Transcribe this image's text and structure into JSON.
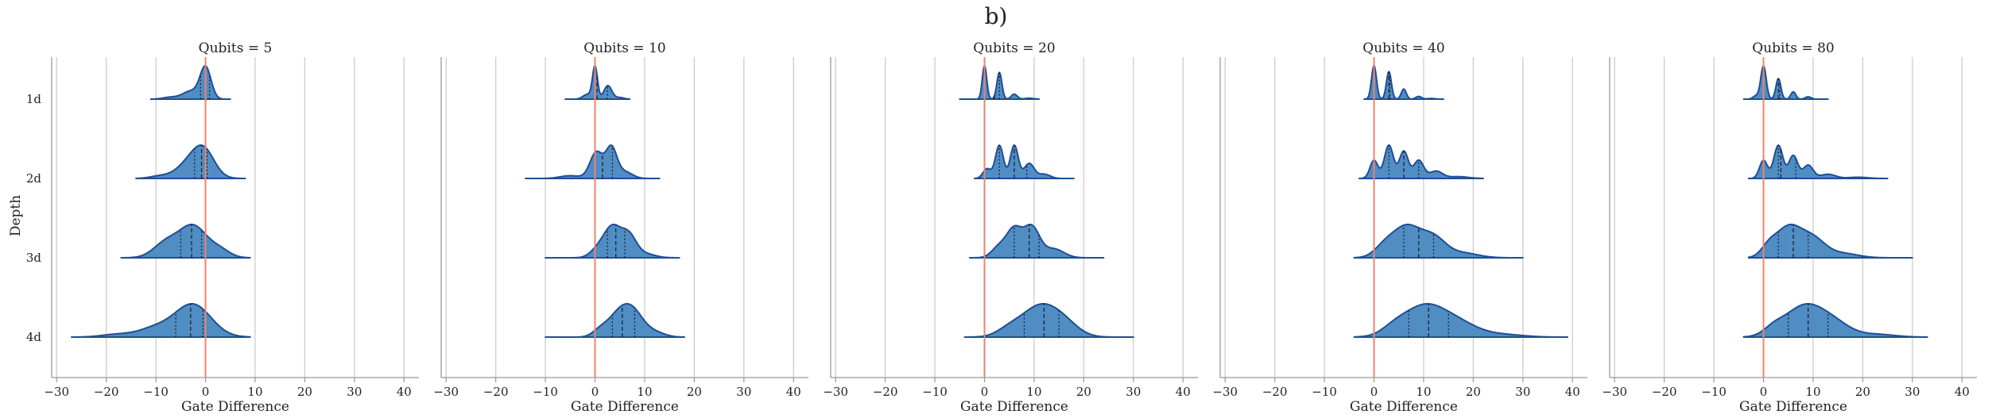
{
  "chart_data": {
    "type": "violin",
    "suptitle": "b)",
    "ylabel": "Depth",
    "xlabel": "Gate Difference",
    "categories": [
      "1d",
      "2d",
      "3d",
      "4d"
    ],
    "xlim": [
      -31,
      43
    ],
    "xticks": [
      -30,
      -20,
      -10,
      0,
      10,
      20,
      30,
      40
    ],
    "reference_line_x": 0,
    "colors": {
      "fill": "#4f8dc2",
      "edge": "#1f4e96",
      "ref": "#f0836b",
      "grid": "#cccccc",
      "spine": "#999999"
    },
    "panels": [
      {
        "title": "Qubits = 5",
        "violins": [
          {
            "depth": "1d",
            "min": -11,
            "max": 5,
            "quartiles": [
              -1,
              0,
              0.8
            ],
            "peaks": [
              {
                "x": 0,
                "h": 1.0,
                "s": 1.1
              },
              {
                "x": -3,
                "h": 0.25,
                "s": 1.6
              },
              {
                "x": -7,
                "h": 0.06,
                "s": 1.5
              }
            ]
          },
          {
            "depth": "2d",
            "min": -14,
            "max": 8,
            "quartiles": [
              -2.2,
              -0.8,
              0.3
            ],
            "peaks": [
              {
                "x": -0.5,
                "h": 0.8,
                "s": 2.2
              },
              {
                "x": -4,
                "h": 0.3,
                "s": 2.2
              },
              {
                "x": -9,
                "h": 0.07,
                "s": 2.0
              }
            ]
          },
          {
            "depth": "3d",
            "min": -17,
            "max": 9,
            "quartiles": [
              -5,
              -2.8,
              -0.8
            ],
            "peaks": [
              {
                "x": -2.5,
                "h": 0.55,
                "s": 2.8
              },
              {
                "x": -8,
                "h": 0.25,
                "s": 2.5
              },
              {
                "x": 3,
                "h": 0.12,
                "s": 2.0
              }
            ]
          },
          {
            "depth": "4d",
            "min": -27,
            "max": 9,
            "quartiles": [
              -6,
              -3,
              -0.5
            ],
            "peaks": [
              {
                "x": -2.5,
                "h": 0.5,
                "s": 3.6
              },
              {
                "x": -10,
                "h": 0.14,
                "s": 3.5
              },
              {
                "x": -18,
                "h": 0.04,
                "s": 3.0
              }
            ]
          }
        ]
      },
      {
        "title": "Qubits = 10",
        "violins": [
          {
            "depth": "1d",
            "min": -6,
            "max": 7,
            "quartiles": [
              0,
              0.4,
              2.5
            ],
            "peaks": [
              {
                "x": 0,
                "h": 1.0,
                "s": 0.5
              },
              {
                "x": 2.6,
                "h": 0.42,
                "s": 0.8
              },
              {
                "x": -1.5,
                "h": 0.15,
                "s": 0.9
              },
              {
                "x": 5,
                "h": 0.05,
                "s": 0.8
              }
            ]
          },
          {
            "depth": "2d",
            "min": -14,
            "max": 13,
            "quartiles": [
              0,
              1.5,
              3.5
            ],
            "peaks": [
              {
                "x": 0.3,
                "h": 0.48,
                "s": 1.3
              },
              {
                "x": 3.3,
                "h": 0.55,
                "s": 1.1
              },
              {
                "x": 6,
                "h": 0.12,
                "s": 1.5
              },
              {
                "x": -5,
                "h": 0.05,
                "s": 2.0
              }
            ]
          },
          {
            "depth": "3d",
            "min": -10,
            "max": 17,
            "quartiles": [
              2.5,
              4.2,
              6
            ],
            "peaks": [
              {
                "x": 3.5,
                "h": 0.6,
                "s": 1.7
              },
              {
                "x": 6.8,
                "h": 0.42,
                "s": 1.5
              },
              {
                "x": 0.5,
                "h": 0.15,
                "s": 1.5
              },
              {
                "x": 10,
                "h": 0.08,
                "s": 2.0
              }
            ]
          },
          {
            "depth": "4d",
            "min": -10,
            "max": 18,
            "quartiles": [
              3.5,
              5.5,
              8
            ],
            "peaks": [
              {
                "x": 5,
                "h": 0.5,
                "s": 2.3
              },
              {
                "x": 8,
                "h": 0.38,
                "s": 2.0
              },
              {
                "x": 1,
                "h": 0.12,
                "s": 1.5
              },
              {
                "x": 12,
                "h": 0.1,
                "s": 2.0
              }
            ]
          }
        ]
      },
      {
        "title": "Qubits = 20",
        "violins": [
          {
            "depth": "1d",
            "min": -5,
            "max": 11,
            "quartiles": [
              0,
              2,
              3
            ],
            "peaks": [
              {
                "x": 0,
                "h": 1.0,
                "s": 0.45
              },
              {
                "x": 3,
                "h": 0.8,
                "s": 0.5
              },
              {
                "x": 6,
                "h": 0.15,
                "s": 0.6
              },
              {
                "x": 9,
                "h": 0.03,
                "s": 0.8
              }
            ]
          },
          {
            "depth": "2d",
            "min": -2,
            "max": 18,
            "quartiles": [
              3,
              6,
              8.5
            ],
            "peaks": [
              {
                "x": 3,
                "h": 0.62,
                "s": 0.8
              },
              {
                "x": 6,
                "h": 0.62,
                "s": 0.8
              },
              {
                "x": 9,
                "h": 0.28,
                "s": 1.0
              },
              {
                "x": 0.5,
                "h": 0.18,
                "s": 0.8
              },
              {
                "x": 12,
                "h": 0.08,
                "s": 1.2
              }
            ]
          },
          {
            "depth": "3d",
            "min": -3,
            "max": 24,
            "quartiles": [
              6,
              9,
              11
            ],
            "peaks": [
              {
                "x": 6,
                "h": 0.38,
                "s": 1.5
              },
              {
                "x": 9.5,
                "h": 0.42,
                "s": 1.6
              },
              {
                "x": 3,
                "h": 0.15,
                "s": 1.5
              },
              {
                "x": 14,
                "h": 0.12,
                "s": 2.0
              }
            ]
          },
          {
            "depth": "4d",
            "min": -4,
            "max": 30,
            "quartiles": [
              8,
              12,
              15
            ],
            "peaks": [
              {
                "x": 11,
                "h": 0.48,
                "s": 3.5
              },
              {
                "x": 16,
                "h": 0.2,
                "s": 3.0
              },
              {
                "x": 5,
                "h": 0.12,
                "s": 2.5
              }
            ]
          }
        ]
      },
      {
        "title": "Qubits = 40",
        "violins": [
          {
            "depth": "1d",
            "min": -2,
            "max": 14,
            "quartiles": [
              0,
              3,
              3.2
            ],
            "peaks": [
              {
                "x": 0,
                "h": 1.0,
                "s": 0.5
              },
              {
                "x": 3,
                "h": 0.82,
                "s": 0.5
              },
              {
                "x": 6,
                "h": 0.3,
                "s": 0.5
              },
              {
                "x": 9,
                "h": 0.08,
                "s": 0.6
              },
              {
                "x": 11.5,
                "h": 0.02,
                "s": 0.8
              }
            ]
          },
          {
            "depth": "2d",
            "min": -3,
            "max": 22,
            "quartiles": [
              3,
              6,
              9
            ],
            "peaks": [
              {
                "x": 0,
                "h": 0.3,
                "s": 0.8
              },
              {
                "x": 3,
                "h": 0.55,
                "s": 0.9
              },
              {
                "x": 6,
                "h": 0.45,
                "s": 0.9
              },
              {
                "x": 9,
                "h": 0.3,
                "s": 1.0
              },
              {
                "x": 12.5,
                "h": 0.12,
                "s": 1.3
              },
              {
                "x": 17,
                "h": 0.03,
                "s": 2.0
              }
            ]
          },
          {
            "depth": "3d",
            "min": -4,
            "max": 30,
            "quartiles": [
              6,
              9,
              12
            ],
            "peaks": [
              {
                "x": 6.5,
                "h": 0.4,
                "s": 2.8
              },
              {
                "x": 12,
                "h": 0.25,
                "s": 2.5
              },
              {
                "x": 2,
                "h": 0.12,
                "s": 2.0
              },
              {
                "x": 18,
                "h": 0.06,
                "s": 3.0
              }
            ]
          },
          {
            "depth": "4d",
            "min": -4,
            "max": 39,
            "quartiles": [
              7,
              11,
              15
            ],
            "peaks": [
              {
                "x": 10,
                "h": 0.48,
                "s": 4.2
              },
              {
                "x": 17,
                "h": 0.2,
                "s": 4.0
              },
              {
                "x": 4,
                "h": 0.1,
                "s": 2.5
              },
              {
                "x": 26,
                "h": 0.04,
                "s": 4.0
              }
            ]
          }
        ]
      },
      {
        "title": "Qubits = 80",
        "violins": [
          {
            "depth": "1d",
            "min": -4,
            "max": 13,
            "quartiles": [
              0,
              3,
              3.3
            ],
            "peaks": [
              {
                "x": 0,
                "h": 1.0,
                "s": 0.55
              },
              {
                "x": 3,
                "h": 0.62,
                "s": 0.5
              },
              {
                "x": 6,
                "h": 0.22,
                "s": 0.5
              },
              {
                "x": 9,
                "h": 0.07,
                "s": 0.6
              },
              {
                "x": -1.5,
                "h": 0.1,
                "s": 0.6
              }
            ]
          },
          {
            "depth": "2d",
            "min": -3,
            "max": 25,
            "quartiles": [
              3,
              3.5,
              6.5
            ],
            "peaks": [
              {
                "x": 0,
                "h": 0.3,
                "s": 0.8
              },
              {
                "x": 3,
                "h": 0.55,
                "s": 0.9
              },
              {
                "x": 6,
                "h": 0.38,
                "s": 0.9
              },
              {
                "x": 9,
                "h": 0.22,
                "s": 1.0
              },
              {
                "x": 13,
                "h": 0.07,
                "s": 1.5
              },
              {
                "x": 19,
                "h": 0.02,
                "s": 2.0
              }
            ]
          },
          {
            "depth": "3d",
            "min": -3,
            "max": 30,
            "quartiles": [
              3,
              6,
              9
            ],
            "peaks": [
              {
                "x": 5,
                "h": 0.42,
                "s": 2.6
              },
              {
                "x": 10,
                "h": 0.25,
                "s": 2.5
              },
              {
                "x": 1,
                "h": 0.12,
                "s": 1.5
              },
              {
                "x": 16,
                "h": 0.06,
                "s": 3.0
              }
            ]
          },
          {
            "depth": "4d",
            "min": -4,
            "max": 33,
            "quartiles": [
              5,
              9,
              13
            ],
            "peaks": [
              {
                "x": 8,
                "h": 0.45,
                "s": 3.8
              },
              {
                "x": 14,
                "h": 0.2,
                "s": 3.5
              },
              {
                "x": 2,
                "h": 0.1,
                "s": 2.0
              },
              {
                "x": 23,
                "h": 0.04,
                "s": 3.5
              }
            ]
          }
        ]
      }
    ]
  }
}
